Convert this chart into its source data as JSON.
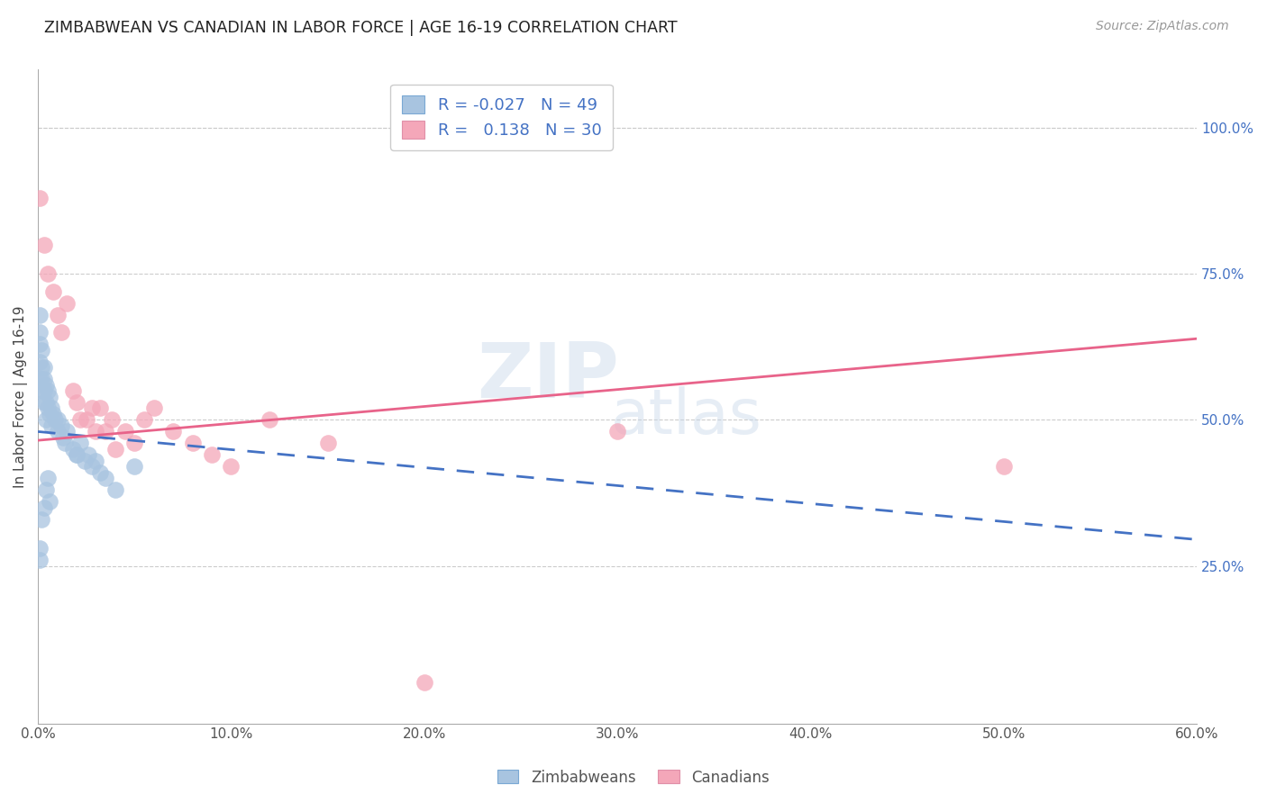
{
  "title": "ZIMBABWEAN VS CANADIAN IN LABOR FORCE | AGE 16-19 CORRELATION CHART",
  "source": "Source: ZipAtlas.com",
  "ylabel": "In Labor Force | Age 16-19",
  "xlim": [
    0.0,
    0.6
  ],
  "ylim": [
    -0.02,
    1.1
  ],
  "xtick_vals": [
    0.0,
    0.1,
    0.2,
    0.3,
    0.4,
    0.5,
    0.6
  ],
  "ytick_vals_right": [
    0.25,
    0.5,
    0.75,
    1.0
  ],
  "ytick_labels_right": [
    "25.0%",
    "50.0%",
    "75.0%",
    "100.0%"
  ],
  "zimbabwean_color": "#a8c4e0",
  "canadian_color": "#f4a7b9",
  "zimbabwean_line_color": "#4472c4",
  "canadian_line_color": "#e8638a",
  "zimbabwean_x": [
    0.001,
    0.001,
    0.001,
    0.001,
    0.001,
    0.002,
    0.002,
    0.002,
    0.002,
    0.003,
    0.003,
    0.003,
    0.003,
    0.004,
    0.004,
    0.004,
    0.005,
    0.005,
    0.006,
    0.006,
    0.007,
    0.007,
    0.008,
    0.009,
    0.01,
    0.01,
    0.012,
    0.013,
    0.014,
    0.015,
    0.018,
    0.02,
    0.022,
    0.024,
    0.026,
    0.028,
    0.03,
    0.032,
    0.035,
    0.04,
    0.001,
    0.001,
    0.002,
    0.003,
    0.004,
    0.005,
    0.006,
    0.02,
    0.05
  ],
  "zimbabwean_y": [
    0.68,
    0.65,
    0.63,
    0.6,
    0.57,
    0.62,
    0.59,
    0.57,
    0.55,
    0.59,
    0.57,
    0.55,
    0.53,
    0.56,
    0.53,
    0.5,
    0.55,
    0.52,
    0.54,
    0.51,
    0.52,
    0.49,
    0.51,
    0.5,
    0.5,
    0.48,
    0.49,
    0.47,
    0.46,
    0.48,
    0.45,
    0.44,
    0.46,
    0.43,
    0.44,
    0.42,
    0.43,
    0.41,
    0.4,
    0.38,
    0.28,
    0.26,
    0.33,
    0.35,
    0.38,
    0.4,
    0.36,
    0.44,
    0.42
  ],
  "canadian_x": [
    0.001,
    0.003,
    0.005,
    0.008,
    0.01,
    0.012,
    0.015,
    0.018,
    0.02,
    0.022,
    0.025,
    0.028,
    0.03,
    0.032,
    0.035,
    0.038,
    0.04,
    0.045,
    0.05,
    0.055,
    0.06,
    0.07,
    0.08,
    0.09,
    0.1,
    0.12,
    0.15,
    0.2,
    0.3,
    0.5
  ],
  "canadian_y": [
    0.88,
    0.8,
    0.75,
    0.72,
    0.68,
    0.65,
    0.7,
    0.55,
    0.53,
    0.5,
    0.5,
    0.52,
    0.48,
    0.52,
    0.48,
    0.5,
    0.45,
    0.48,
    0.46,
    0.5,
    0.52,
    0.48,
    0.46,
    0.44,
    0.42,
    0.5,
    0.46,
    0.05,
    0.48,
    0.42
  ]
}
